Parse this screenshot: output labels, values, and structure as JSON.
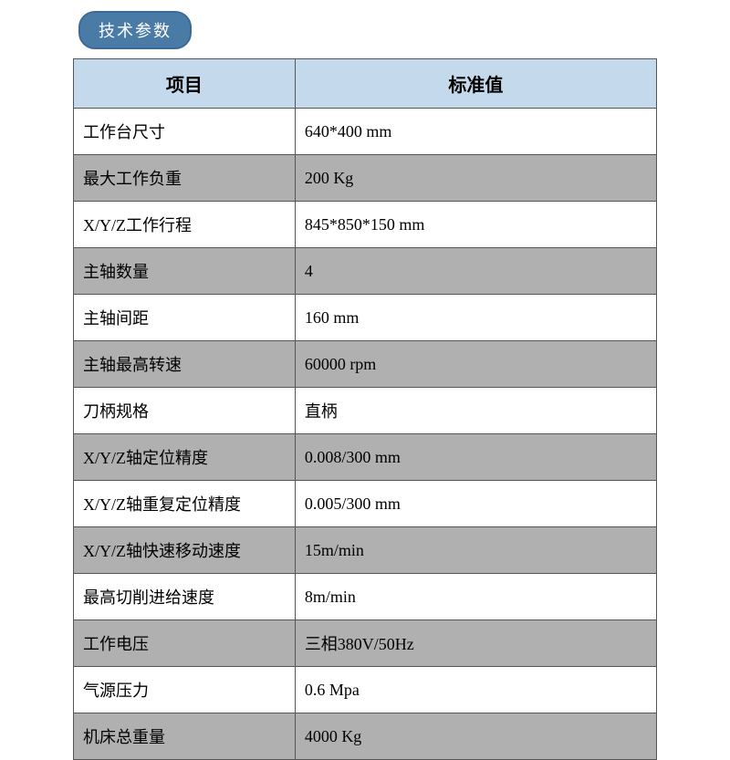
{
  "title": "技术参数",
  "table": {
    "columns": [
      "项目",
      "标准值"
    ],
    "rows": [
      [
        "工作台尺寸",
        "640*400 mm"
      ],
      [
        "最大工作负重",
        "200 Kg"
      ],
      [
        "X/Y/Z工作行程",
        "845*850*150 mm"
      ],
      [
        "主轴数量",
        "4"
      ],
      [
        "主轴间距",
        "160 mm"
      ],
      [
        "主轴最高转速",
        "60000 rpm"
      ],
      [
        "刀柄规格",
        "直柄"
      ],
      [
        "X/Y/Z轴定位精度",
        "0.008/300 mm"
      ],
      [
        "X/Y/Z轴重复定位精度",
        "0.005/300 mm"
      ],
      [
        "X/Y/Z轴快速移动速度",
        "15m/min"
      ],
      [
        "最高切削进给速度",
        "8m/min"
      ],
      [
        "工作电压",
        "三相380V/50Hz"
      ],
      [
        "气源压力",
        "0.6 Mpa"
      ],
      [
        "机床总重量",
        "4000 Kg"
      ]
    ],
    "header_bg": "#c5d9ec",
    "odd_row_bg": "#ffffff",
    "even_row_bg": "#b0b0b0",
    "border_color": "#555555",
    "title_badge_bg": "#4a7ba6",
    "title_badge_text_color": "#ffffff",
    "header_fontsize": 20,
    "cell_fontsize": 18,
    "col_widths": [
      "38%",
      "62%"
    ]
  }
}
